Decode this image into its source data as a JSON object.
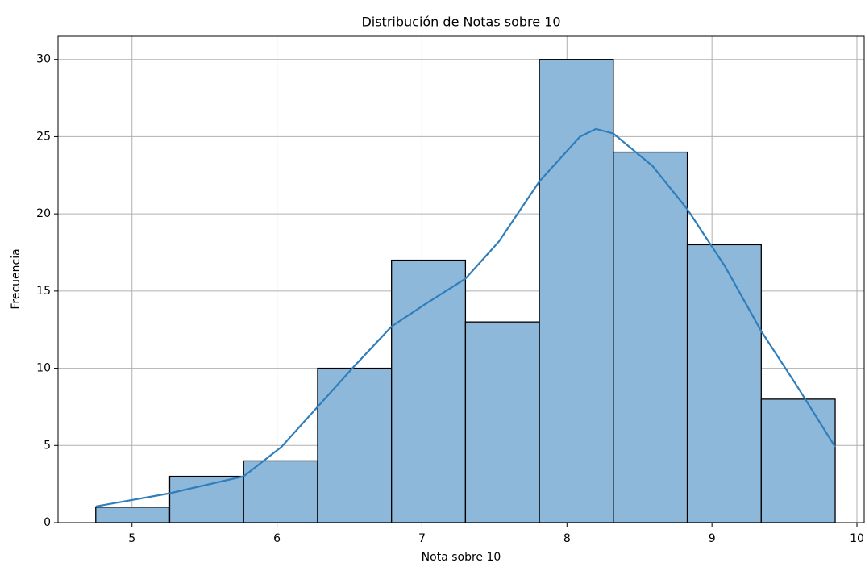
{
  "chart_data": {
    "type": "histogram",
    "title": "Distribución de Notas sobre 10",
    "xlabel": "Nota sobre 10",
    "ylabel": "Frecuencia",
    "bins": [
      4.75,
      5.26,
      5.77,
      6.28,
      6.79,
      7.3,
      7.81,
      8.32,
      8.83,
      9.34,
      9.85
    ],
    "counts": [
      1,
      3,
      4,
      10,
      17,
      13,
      30,
      24,
      18,
      8
    ],
    "color": "#8db8da",
    "edgecolor": "#000000",
    "kde": {
      "color": "#2f7ebc",
      "x": [
        4.75,
        5.26,
        5.77,
        6.03,
        6.28,
        6.53,
        6.79,
        7.03,
        7.3,
        7.53,
        7.81,
        8.09,
        8.2,
        8.32,
        8.59,
        8.83,
        9.09,
        9.34,
        9.59,
        9.85
      ],
      "y": [
        1.05,
        1.9,
        3.0,
        4.9,
        7.5,
        10.1,
        12.7,
        14.2,
        15.8,
        18.2,
        22.1,
        25.0,
        25.5,
        25.2,
        23.1,
        20.3,
        16.6,
        12.4,
        8.8,
        4.9
      ]
    },
    "xlim": [
      4.49,
      10.05
    ],
    "ylim": [
      0,
      31.5
    ],
    "xticks": [
      5,
      6,
      7,
      8,
      9,
      10
    ],
    "yticks": [
      0,
      5,
      10,
      15,
      20,
      25,
      30
    ],
    "grid": true
  }
}
